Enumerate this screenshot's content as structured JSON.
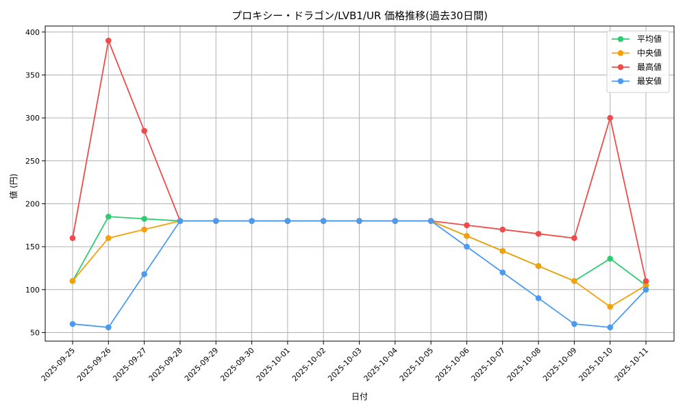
{
  "chart_data": {
    "type": "line",
    "title": "プロキシー・ドラゴン/LVB1/UR 価格推移(過去30日間)",
    "xlabel": "日付",
    "ylabel": "値 (円)",
    "categories": [
      "2025-09-25",
      "2025-09-26",
      "2025-09-27",
      "2025-09-28",
      "2025-09-29",
      "2025-09-30",
      "2025-10-01",
      "2025-10-02",
      "2025-10-03",
      "2025-10-04",
      "2025-10-05",
      "2025-10-06",
      "2025-10-07",
      "2025-10-08",
      "2025-10-09",
      "2025-10-10",
      "2025-10-11"
    ],
    "yticks": [
      50,
      100,
      150,
      200,
      250,
      300,
      350,
      400
    ],
    "ylim": [
      40,
      407
    ],
    "grid": true,
    "legend_position": "top-right",
    "series": [
      {
        "name": "平均値",
        "color": "#2ecc71",
        "values": [
          110,
          185,
          182.5,
          180,
          180,
          180,
          180,
          180,
          180,
          180,
          180,
          162.5,
          145,
          127.5,
          110,
          136,
          105
        ]
      },
      {
        "name": "中央値",
        "color": "#f5a00a",
        "values": [
          110,
          160,
          170,
          180,
          180,
          180,
          180,
          180,
          180,
          180,
          180,
          162.5,
          145,
          127.5,
          110,
          80,
          105
        ]
      },
      {
        "name": "最高値",
        "color": "#ef4b4b",
        "values": [
          160,
          390,
          285,
          180,
          180,
          180,
          180,
          180,
          180,
          180,
          180,
          175,
          170,
          165,
          160,
          300,
          110
        ]
      },
      {
        "name": "最安値",
        "color": "#4a9af0",
        "values": [
          60,
          56,
          118,
          180,
          180,
          180,
          180,
          180,
          180,
          180,
          180,
          150,
          120,
          90,
          60,
          56,
          100
        ]
      }
    ]
  }
}
